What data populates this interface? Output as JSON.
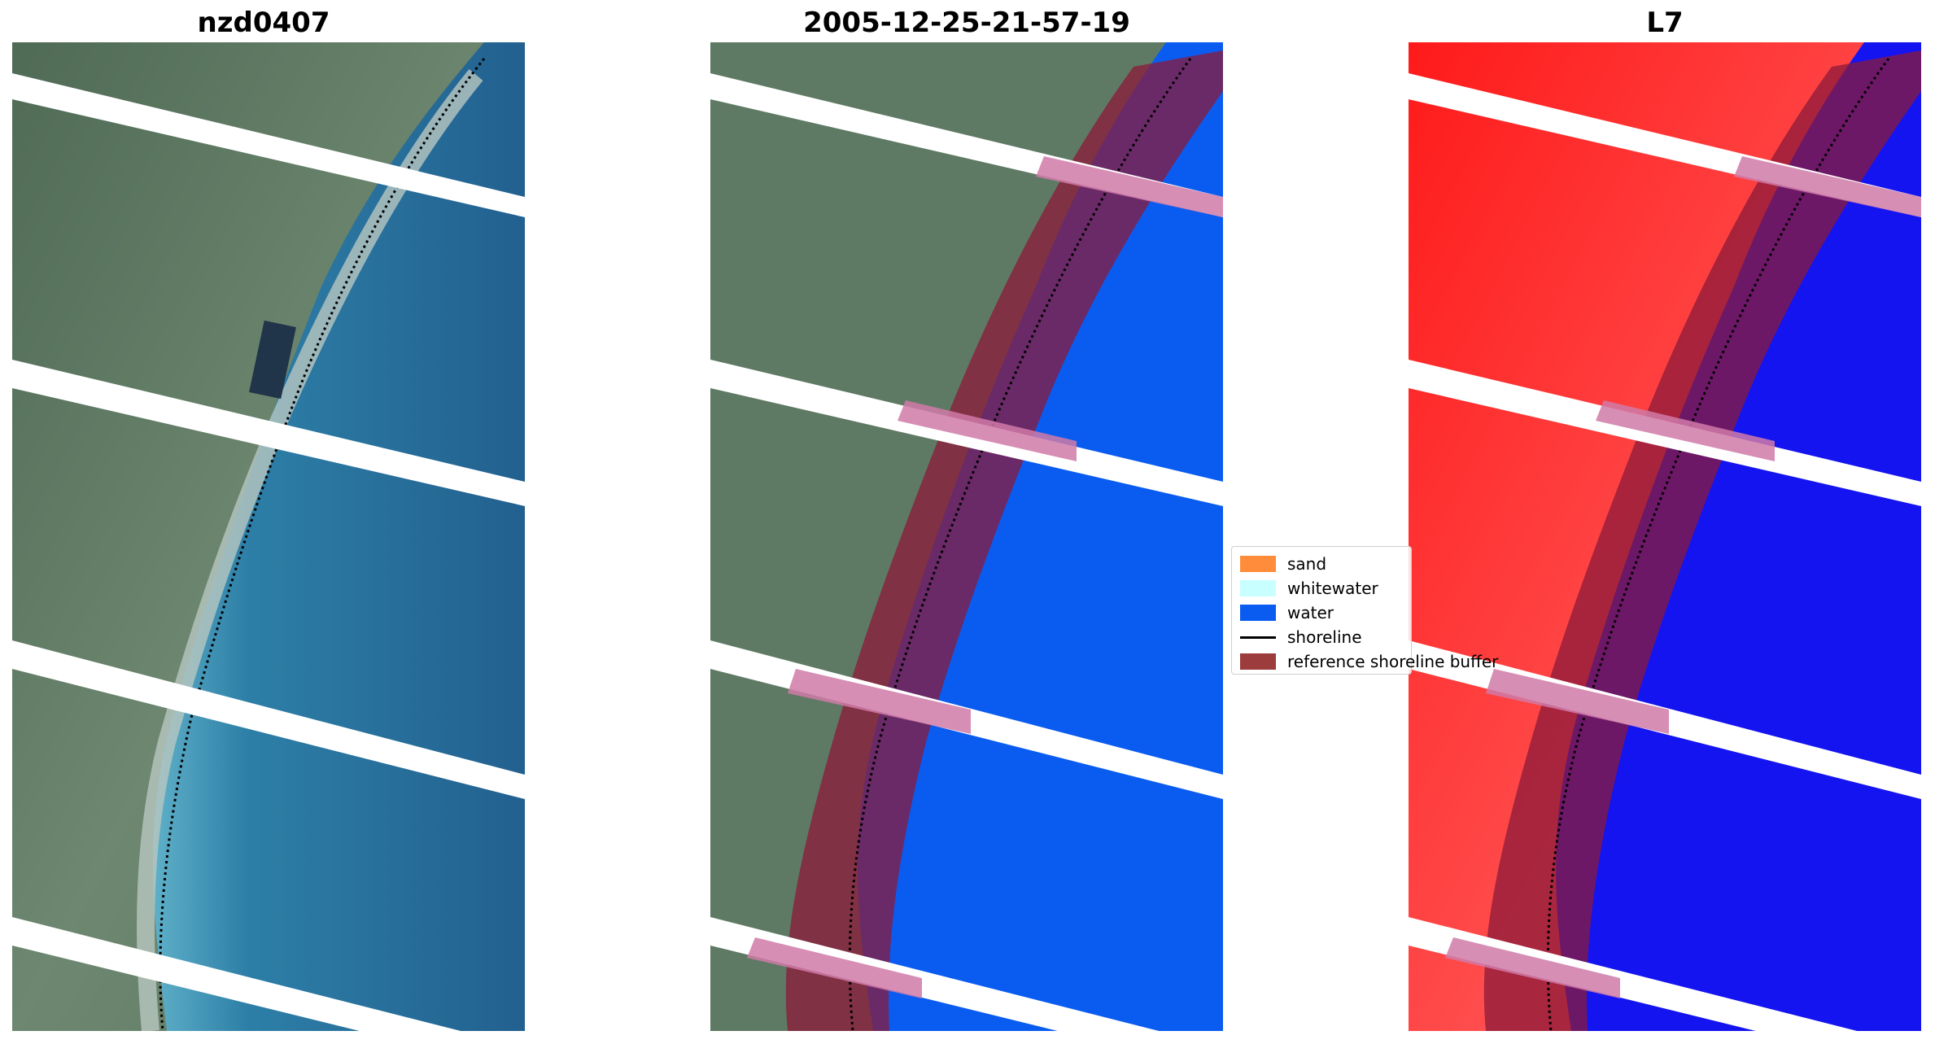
{
  "panels": [
    {
      "title": "nzd0407",
      "kind": "rgb"
    },
    {
      "title": "2005-12-25-21-57-19",
      "kind": "classified"
    },
    {
      "title": "L7",
      "kind": "index"
    }
  ],
  "legend": {
    "items": [
      {
        "label": "sand",
        "color": "#ff8c3a",
        "type": "patch"
      },
      {
        "label": "whitewater",
        "color": "#c8ffff",
        "type": "patch"
      },
      {
        "label": "water",
        "color": "#0a5cf0",
        "type": "patch"
      },
      {
        "label": "shoreline",
        "color": "#000000",
        "type": "line"
      },
      {
        "label": "reference shoreline buffer",
        "color": "#8b1a1a",
        "type": "patch"
      }
    ]
  },
  "colors": {
    "land_green": "#5f7a64",
    "sea_blue": "#2a6a97",
    "classified_water": "#0a5cf0",
    "buffer": "#8b1a3a",
    "index_red": "#ff2020",
    "index_blue": "#1010f0"
  }
}
